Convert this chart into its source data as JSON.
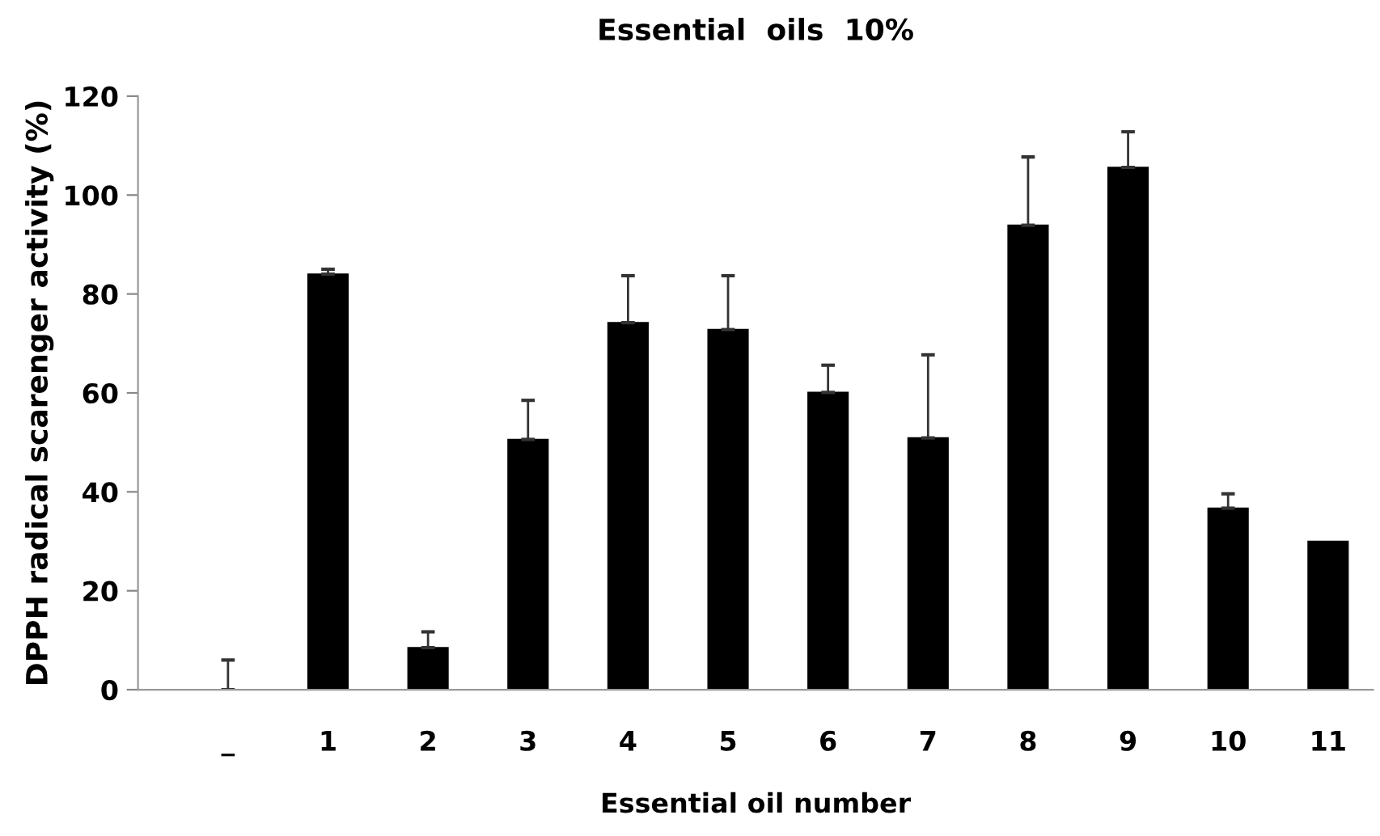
{
  "chart_data": {
    "type": "bar",
    "title": "Essential  oils  10%",
    "xlabel": "Essential oil number",
    "ylabel": "DPPH radical scarenger activity (%)",
    "categories": [
      "_",
      "1",
      "2",
      "3",
      "4",
      "5",
      "6",
      "7",
      "8",
      "9",
      "10",
      "11"
    ],
    "values": [
      0,
      84,
      8.5,
      50.6,
      74.2,
      72.8,
      60.1,
      50.9,
      93.9,
      105.6,
      36.7,
      30
    ],
    "errors": [
      [
        0,
        6
      ],
      [
        84,
        85
      ],
      [
        8.5,
        11.7
      ],
      [
        50.6,
        58.5
      ],
      [
        74.2,
        83.7
      ],
      [
        72.8,
        83.7
      ],
      [
        60.1,
        65.6
      ],
      [
        50.9,
        67.7
      ],
      [
        93.9,
        107.7
      ],
      [
        105.6,
        112.8
      ],
      [
        36.7,
        39.6
      ],
      null
    ],
    "color": "#000000",
    "ylim": [
      0,
      120
    ],
    "yticks": [
      0,
      20,
      40,
      60,
      80,
      100,
      120
    ],
    "grid": false,
    "legend": false
  }
}
